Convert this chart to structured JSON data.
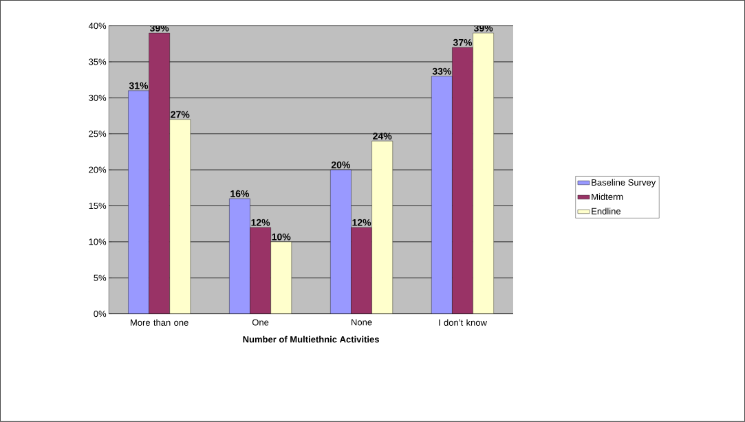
{
  "chart_data": {
    "type": "bar",
    "xlabel": "Number of Multiethnic Activities",
    "categories": [
      "More than one",
      "One",
      "None",
      "I don’t know"
    ],
    "series": [
      {
        "name": "Baseline Survey",
        "color": "#9999ff",
        "values": [
          31,
          16,
          20,
          33
        ],
        "value_labels": [
          "31%",
          "16%",
          "20%",
          "33%"
        ]
      },
      {
        "name": "Midterm",
        "color": "#993366",
        "values": [
          39,
          12,
          12,
          37
        ],
        "value_labels": [
          "39%",
          "12%",
          "12%",
          "37%"
        ]
      },
      {
        "name": "Endline",
        "color": "#ffffcc",
        "values": [
          27,
          10,
          24,
          39
        ],
        "value_labels": [
          "27%",
          "10%",
          "24%",
          "39%"
        ]
      }
    ],
    "ylim": [
      0,
      40
    ],
    "yticks": [
      {
        "value": 0,
        "label": "0%"
      },
      {
        "value": 5,
        "label": "5%"
      },
      {
        "value": 10,
        "label": "10%"
      },
      {
        "value": 15,
        "label": "15%"
      },
      {
        "value": 20,
        "label": "20%"
      },
      {
        "value": 25,
        "label": "25%"
      },
      {
        "value": 30,
        "label": "30%"
      },
      {
        "value": 35,
        "label": "35%"
      },
      {
        "value": 40,
        "label": "40%"
      }
    ],
    "grid": "y",
    "legend": "right"
  }
}
